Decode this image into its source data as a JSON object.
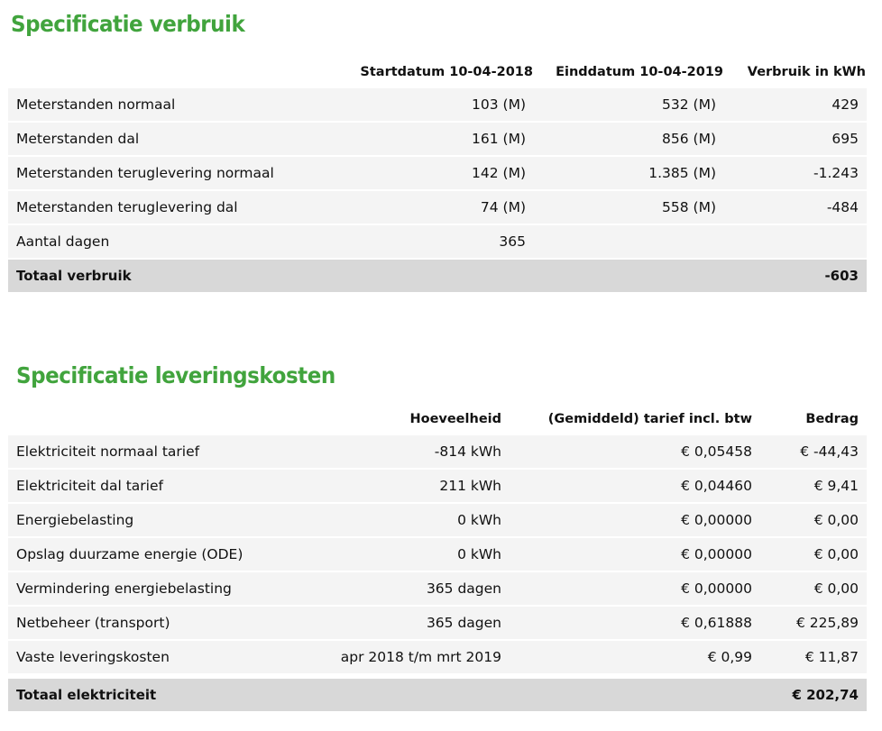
{
  "verbruik": {
    "title": "Specificatie verbruik",
    "headers": [
      "",
      "Startdatum 10-04-2018",
      "Einddatum 10-04-2019",
      "Verbruik in kWh"
    ],
    "rows": [
      [
        "Meterstanden normaal",
        "103 (M)",
        "532 (M)",
        "429"
      ],
      [
        "Meterstanden dal",
        "161 (M)",
        "856 (M)",
        "695"
      ],
      [
        "Meterstanden teruglevering normaal",
        "142 (M)",
        "1.385 (M)",
        "-1.243"
      ],
      [
        "Meterstanden teruglevering dal",
        "74 (M)",
        "558 (M)",
        "-484"
      ],
      [
        "Aantal dagen",
        "365",
        "",
        ""
      ]
    ],
    "total": {
      "label": "Totaal verbruik",
      "value": "-603"
    }
  },
  "leveringskosten": {
    "title": "Specificatie leveringskosten",
    "headers": [
      "",
      "Hoeveelheid",
      "(Gemiddeld) tarief incl. btw",
      "Bedrag"
    ],
    "rows": [
      [
        "Elektriciteit normaal tarief",
        "-814 kWh",
        "€ 0,05458",
        "€ -44,43"
      ],
      [
        "Elektriciteit dal tarief",
        "211 kWh",
        "€ 0,04460",
        "€ 9,41"
      ],
      [
        "Energiebelasting",
        "0 kWh",
        "€ 0,00000",
        "€ 0,00"
      ],
      [
        "Opslag duurzame energie (ODE)",
        "0 kWh",
        "€ 0,00000",
        "€ 0,00"
      ],
      [
        "Vermindering energiebelasting",
        "365 dagen",
        "€ 0,00000",
        "€ 0,00"
      ],
      [
        "Netbeheer (transport)",
        "365 dagen",
        "€ 0,61888",
        "€ 225,89"
      ],
      [
        "Vaste leveringskosten",
        "apr 2018 t/m mrt 2019",
        "€ 0,99",
        "€ 11,87"
      ]
    ],
    "total": {
      "label": "Totaal elektriciteit",
      "value": "€ 202,74"
    }
  }
}
